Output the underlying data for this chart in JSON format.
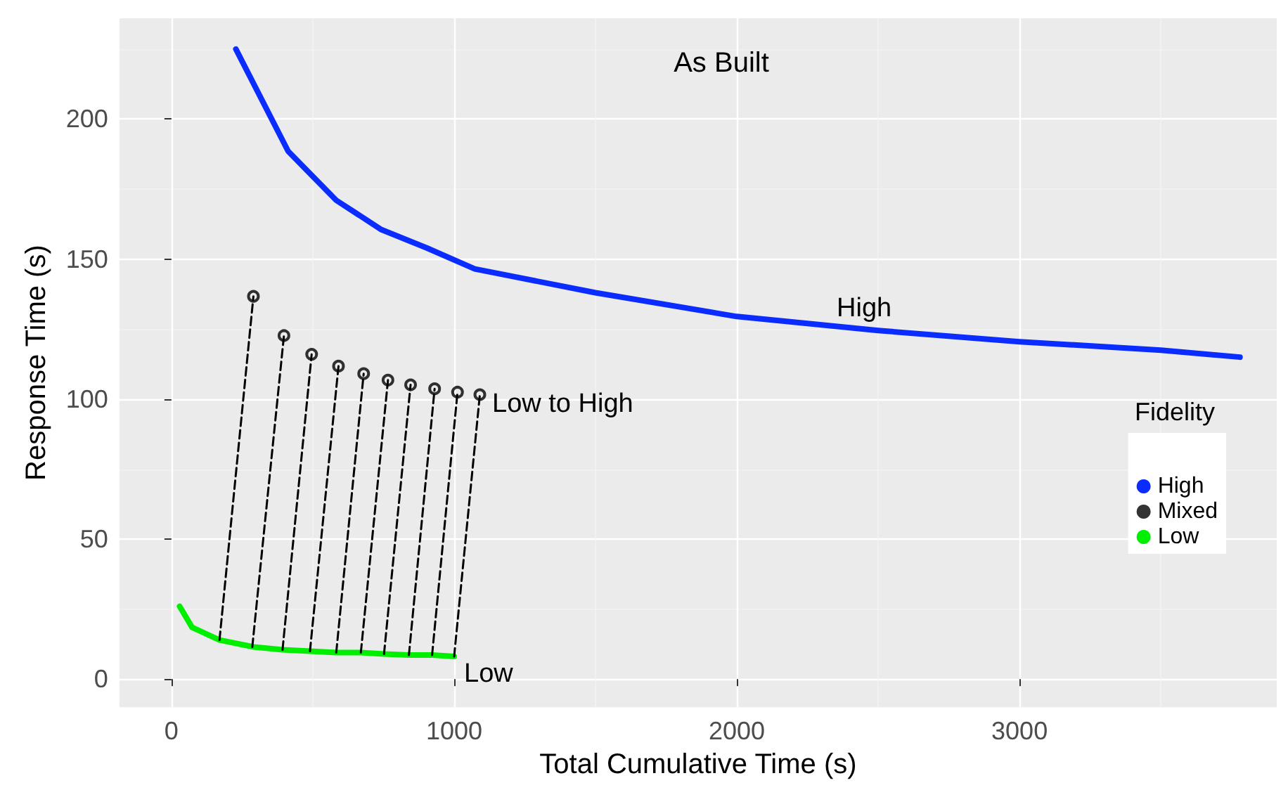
{
  "chart_data": {
    "type": "line",
    "title": "As Built",
    "xlabel": "Total Cumulative Time (s)",
    "ylabel": "Response Time (s)",
    "legend_title": "Fidelity",
    "xlim": [
      -184,
      3910
    ],
    "ylim": [
      -10,
      236
    ],
    "xticks": [
      0,
      1000,
      2000,
      3000
    ],
    "yticks": [
      0,
      50,
      100,
      150,
      200
    ],
    "grid": true,
    "legend": "right",
    "annotations": [
      "High",
      "Low to High",
      "Low"
    ],
    "series": [
      {
        "name": "High",
        "color": "#0a2cff",
        "marker": "none",
        "x": [
          228,
          413,
          583,
          743,
          903,
          1073,
          1500,
          2000,
          2500,
          3000,
          3500,
          3780
        ],
        "values": [
          225,
          188.5,
          171,
          160.5,
          154,
          146.5,
          138,
          129.5,
          124.5,
          120.5,
          117.5,
          115
        ]
      },
      {
        "name": "Low",
        "color": "#00ee00",
        "marker": "none",
        "x": [
          29,
          73,
          170,
          291,
          393,
          490,
          583,
          670,
          752,
          840,
          922,
          1000
        ],
        "values": [
          26,
          18.5,
          14,
          11.5,
          10.5,
          10,
          9.5,
          9.5,
          9,
          8.6,
          8.6,
          8.1
        ]
      },
      {
        "color": "#000000",
        "marker": "none",
        "line_style": "dashed",
        "x": [
          170,
          290
        ],
        "values": [
          14,
          136.7
        ]
      },
      {
        "color": "#000000",
        "marker": "none",
        "line_style": "dashed",
        "x": [
          286,
          398
        ],
        "values": [
          11.5,
          122.7
        ]
      },
      {
        "color": "#000000",
        "marker": "none",
        "line_style": "dashed",
        "x": [
          393,
          496
        ],
        "values": [
          10.5,
          116
        ]
      },
      {
        "color": "#000000",
        "marker": "none",
        "line_style": "dashed",
        "x": [
          490,
          591
        ],
        "values": [
          10,
          111.8
        ]
      },
      {
        "color": "#000000",
        "marker": "none",
        "line_style": "dashed",
        "x": [
          583,
          680
        ],
        "values": [
          9.5,
          109.1
        ]
      },
      {
        "color": "#000000",
        "marker": "none",
        "line_style": "dashed",
        "x": [
          670,
          766
        ],
        "values": [
          9.5,
          106.8
        ]
      },
      {
        "color": "#000000",
        "marker": "none",
        "line_style": "dashed",
        "x": [
          752,
          846
        ],
        "values": [
          9,
          105.1
        ]
      },
      {
        "color": "#000000",
        "marker": "none",
        "line_style": "dashed",
        "x": [
          840,
          931
        ],
        "values": [
          8.6,
          103.7
        ]
      },
      {
        "color": "#000000",
        "marker": "none",
        "line_style": "dashed",
        "x": [
          922,
          1012
        ],
        "values": [
          8.6,
          102.5
        ]
      },
      {
        "color": "#000000",
        "marker": "none",
        "line_style": "dashed",
        "x": [
          1000,
          1091
        ],
        "values": [
          8.1,
          101.6
        ]
      },
      {
        "name": "Mixed",
        "type": "scatter",
        "color": "#000000",
        "marker": "circle",
        "x": [
          290,
          398,
          496,
          591,
          680,
          766,
          846,
          931,
          1012,
          1091
        ],
        "values": [
          136.7,
          122.7,
          116,
          111.8,
          109.1,
          106.8,
          105.1,
          103.7,
          102.5,
          101.6
        ]
      }
    ]
  }
}
